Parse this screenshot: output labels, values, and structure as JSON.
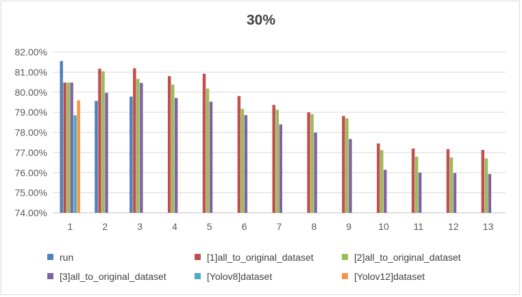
{
  "chart_data": {
    "type": "bar",
    "title": "30%",
    "xlabel": "",
    "ylabel": "",
    "ylim": [
      74.0,
      82.0
    ],
    "y_ticks": [
      "74.00%",
      "75.00%",
      "76.00%",
      "77.00%",
      "78.00%",
      "79.00%",
      "80.00%",
      "81.00%",
      "82.00%"
    ],
    "grid": true,
    "legend_position": "bottom",
    "categories": [
      "1",
      "2",
      "3",
      "4",
      "5",
      "6",
      "7",
      "8",
      "9",
      "10",
      "11",
      "12",
      "13"
    ],
    "series": [
      {
        "name": "run",
        "color": "#4F81BD",
        "values": [
          81.55,
          79.57,
          79.78,
          null,
          null,
          null,
          null,
          null,
          null,
          null,
          null,
          null,
          null
        ]
      },
      {
        "name": "[1]all_to_original_dataset",
        "color": "#C0504D",
        "values": [
          80.48,
          81.17,
          81.19,
          80.8,
          80.92,
          79.81,
          79.37,
          79.0,
          78.82,
          77.45,
          77.2,
          77.17,
          77.13
        ]
      },
      {
        "name": "[2]all_to_original_dataset",
        "color": "#9BBB59",
        "values": [
          80.48,
          81.04,
          80.66,
          80.38,
          80.18,
          79.17,
          79.13,
          78.91,
          78.7,
          77.12,
          76.79,
          76.76,
          76.71
        ]
      },
      {
        "name": "[3]all_to_original_dataset",
        "color": "#8064A2",
        "values": [
          80.48,
          79.97,
          80.46,
          79.71,
          79.53,
          78.86,
          78.4,
          77.99,
          77.67,
          76.14,
          76.0,
          75.98,
          75.93
        ]
      },
      {
        "name": "[Yolov8]dataset",
        "color": "#4BACC6",
        "values": [
          78.85,
          null,
          null,
          null,
          null,
          null,
          null,
          null,
          null,
          null,
          null,
          null,
          null
        ]
      },
      {
        "name": "[Yolov12]dataset",
        "color": "#F79646",
        "values": [
          79.6,
          null,
          null,
          null,
          null,
          null,
          null,
          null,
          null,
          null,
          null,
          null,
          null
        ]
      }
    ]
  }
}
